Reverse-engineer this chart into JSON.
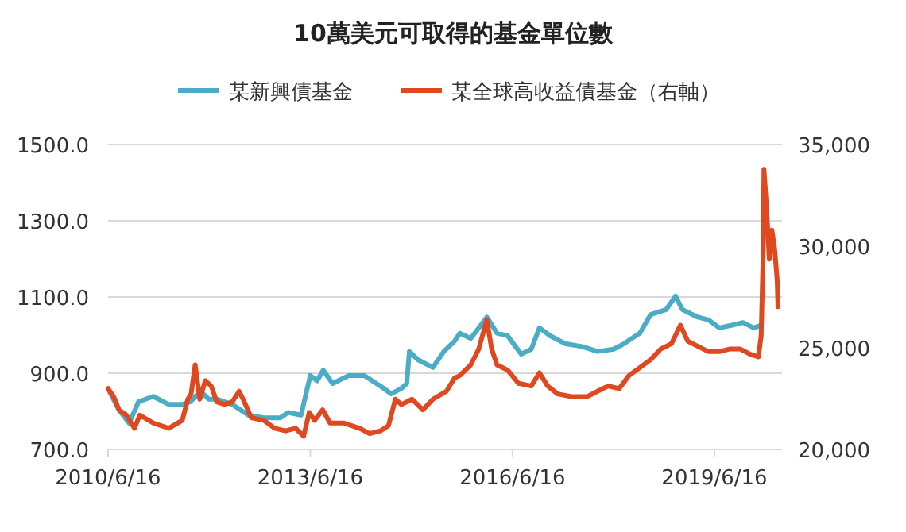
{
  "chart_data": {
    "type": "line",
    "title": "10萬美元可取得的基金單位數",
    "series": [
      {
        "name": "某新興債基金",
        "color": "#4bacc6",
        "x": [
          "2010-06-16",
          "2010-08-14",
          "2010-10-08",
          "2010-11-28",
          "2011-02-16",
          "2011-05-11",
          "2011-07-23",
          "2011-09-05",
          "2011-10-30",
          "2011-12-13",
          "2012-01-26",
          "2012-04-19",
          "2012-07-15",
          "2012-10-07",
          "2013-01-04",
          "2013-02-16",
          "2013-04-27",
          "2013-06-16",
          "2013-07-23",
          "2013-08-25",
          "2013-10-15",
          "2014-01-11",
          "2014-04-05",
          "2014-07-01",
          "2014-08-29",
          "2014-10-23",
          "2014-11-21",
          "2014-12-05",
          "2015-01-18",
          "2015-04-12",
          "2015-06-10",
          "2015-08-07",
          "2015-09-05",
          "2015-11-03",
          "2016-01-29",
          "2016-03-24",
          "2016-05-21",
          "2016-08-02",
          "2016-09-26",
          "2016-11-09",
          "2017-01-07",
          "2017-04-01",
          "2017-06-28",
          "2017-09-20",
          "2017-12-16",
          "2018-02-09",
          "2018-05-08",
          "2018-07-05",
          "2018-09-27",
          "2018-11-17",
          "2018-12-24",
          "2019-03-18",
          "2019-05-15",
          "2019-07-12",
          "2019-09-20",
          "2019-11-17",
          "2020-01-15",
          "2020-02-24"
        ],
        "values": [
          859,
          804,
          769,
          825,
          839,
          818,
          818,
          825,
          853,
          832,
          832,
          818,
          790,
          783,
          783,
          797,
          790,
          894,
          880,
          908,
          873,
          894,
          894,
          866,
          846,
          860,
          873,
          957,
          936,
          915,
          957,
          984,
          1005,
          991,
          1047,
          1005,
          998,
          950,
          963,
          1019,
          998,
          977,
          970,
          957,
          963,
          977,
          1005,
          1054,
          1067,
          1102,
          1067,
          1047,
          1040,
          1019,
          1026,
          1033,
          1019,
          1026
        ]
      },
      {
        "name": "某全球高收益債基金（右軸）",
        "color": "#e0481f",
        "axis": "y2",
        "x": [
          "2010-06-16",
          "2010-07-16",
          "2010-08-14",
          "2010-09-23",
          "2010-11-06",
          "2010-12-05",
          "2011-02-16",
          "2011-05-11",
          "2011-07-23",
          "2011-08-22",
          "2011-09-09",
          "2011-10-01",
          "2011-10-26",
          "2011-11-25",
          "2011-12-27",
          "2012-01-26",
          "2012-03-10",
          "2012-04-19",
          "2012-05-26",
          "2012-06-17",
          "2012-07-31",
          "2012-10-07",
          "2012-12-05",
          "2013-02-02",
          "2013-03-29",
          "2013-05-11",
          "2013-06-10",
          "2013-07-09",
          "2013-08-22",
          "2013-10-01",
          "2013-12-13",
          "2014-03-10",
          "2014-05-04",
          "2014-07-01",
          "2014-08-14",
          "2014-09-20",
          "2014-10-23",
          "2014-12-20",
          "2015-02-16",
          "2015-04-12",
          "2015-06-24",
          "2015-08-07",
          "2015-09-05",
          "2015-11-03",
          "2015-12-16",
          "2016-01-29",
          "2016-02-24",
          "2016-03-24",
          "2016-05-21",
          "2016-07-19",
          "2016-09-26",
          "2016-11-09",
          "2016-12-24",
          "2017-02-16",
          "2017-04-30",
          "2017-07-27",
          "2017-09-20",
          "2017-11-17",
          "2018-01-15",
          "2018-03-10",
          "2018-05-08",
          "2018-07-05",
          "2018-08-29",
          "2018-10-26",
          "2018-12-13",
          "2019-01-22",
          "2019-03-18",
          "2019-05-15",
          "2019-07-12",
          "2019-09-05",
          "2019-11-03",
          "2019-12-27",
          "2020-02-09",
          "2020-02-24",
          "2020-03-06",
          "2020-03-10",
          "2020-03-24",
          "2020-04-08",
          "2020-04-22",
          "2020-05-07",
          "2020-05-21",
          "2020-05-25"
        ],
        "values": [
          23000,
          22600,
          21950,
          21690,
          21040,
          21690,
          21300,
          21040,
          21430,
          22470,
          22730,
          24160,
          22470,
          23380,
          23120,
          22340,
          22210,
          22340,
          22860,
          22470,
          21560,
          21430,
          21040,
          20910,
          21040,
          20650,
          21820,
          21430,
          21950,
          21300,
          21300,
          21040,
          20780,
          20910,
          21170,
          22470,
          22210,
          22470,
          21950,
          22470,
          22860,
          23510,
          23640,
          24160,
          24940,
          26370,
          24940,
          24160,
          23900,
          23250,
          23120,
          23770,
          23120,
          22730,
          22600,
          22600,
          22860,
          23120,
          22990,
          23640,
          24030,
          24420,
          24940,
          25200,
          26110,
          25330,
          25070,
          24810,
          24810,
          24940,
          24940,
          24680,
          24550,
          25590,
          29620,
          33780,
          31960,
          29360,
          30790,
          29880,
          28320,
          27020
        ]
      }
    ],
    "xlim": [
      "2010-06-16",
      "2020-06-16"
    ],
    "xticks": [
      {
        "value": "2010-06-16",
        "label": "2010/6/16"
      },
      {
        "value": "2013-06-16",
        "label": "2013/6/16"
      },
      {
        "value": "2016-06-16",
        "label": "2016/6/16"
      },
      {
        "value": "2019-06-16",
        "label": "2019/6/16"
      }
    ],
    "ylim": [
      700,
      1500
    ],
    "yticks": [
      {
        "value": 700,
        "label": "700.0"
      },
      {
        "value": 900,
        "label": "900.0"
      },
      {
        "value": 1100,
        "label": "1100.0"
      },
      {
        "value": 1300,
        "label": "1300.0"
      },
      {
        "value": 1500,
        "label": "1500.0"
      }
    ],
    "y2lim": [
      20000,
      35000
    ],
    "y2ticks": [
      {
        "value": 20000,
        "label": "20,000"
      },
      {
        "value": 25000,
        "label": "25,000"
      },
      {
        "value": 30000,
        "label": "30,000"
      },
      {
        "value": 35000,
        "label": "35,000"
      }
    ],
    "grid": "y",
    "legend": "top",
    "marker": "none",
    "line_style": "solid"
  }
}
